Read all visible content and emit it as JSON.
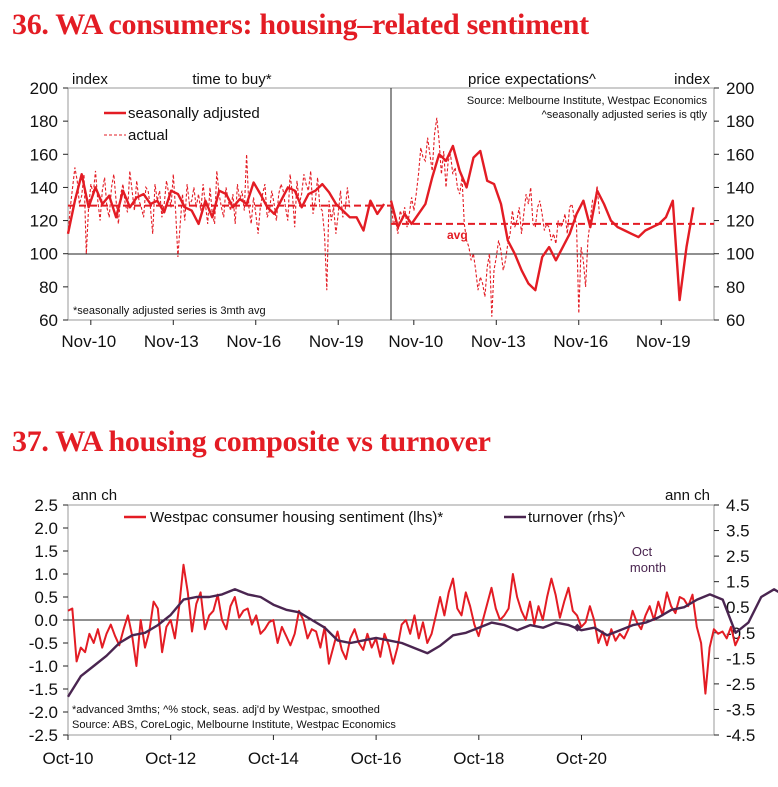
{
  "chart36": {
    "title": "36. WA consumers: housing–related sentiment",
    "ylabel_left": "index",
    "ylabel_right": "index",
    "y_ticks": [
      "200",
      "180",
      "160",
      "140",
      "120",
      "100",
      "80",
      "60"
    ],
    "x_ticks_left": [
      "Nov-10",
      "Nov-13",
      "Nov-16",
      "Nov-19"
    ],
    "x_ticks_right": [
      "Nov-10",
      "Nov-13",
      "Nov-16",
      "Nov-19"
    ],
    "panel_left_title": "time to buy*",
    "panel_right_title": "price expectations^",
    "legend_sa": "seasonally adjusted",
    "legend_actual": "actual",
    "source": "Source: Melbourne Institute, Westpac Economics",
    "note_right": "^seasonally adjusted series is qtly",
    "note_left": "*seasonally adjusted series is 3mth avg",
    "avg_label": "avg"
  },
  "chart37": {
    "title": "37. WA housing composite vs turnover",
    "ylabel_left": "ann ch",
    "ylabel_right": "ann ch",
    "y_ticks_left": [
      "2.5",
      "2.0",
      "1.5",
      "1.0",
      "0.5",
      "0.0",
      "-0.5",
      "-1.0",
      "-1.5",
      "-2.0",
      "-2.5"
    ],
    "y_ticks_right": [
      "4.5",
      "3.5",
      "2.5",
      "1.5",
      "0.5",
      "-0.5",
      "-1.5",
      "-2.5",
      "-3.5",
      "-4.5"
    ],
    "x_ticks": [
      "Oct-10",
      "Oct-12",
      "Oct-14",
      "Oct-16",
      "Oct-18",
      "Oct-20"
    ],
    "legend_sentiment": "Westpac consumer housing sentiment (lhs)*",
    "legend_turnover": "turnover (rhs)^",
    "annotation_line1": "Oct",
    "annotation_line2": "month",
    "note1": "*advanced 3mths; ^% stock, seas. adj'd by Westpac, smoothed",
    "note2": "Source: ABS, CoreLogic, Melbourne Institute, Westpac Economics"
  },
  "chart_data": [
    {
      "type": "line",
      "title": "36. WA consumers: housing–related sentiment — time to buy*",
      "xlabel": "",
      "ylabel": "index",
      "ylim": [
        60,
        200
      ],
      "x_range": [
        "2010-01",
        "2021-09"
      ],
      "series": [
        {
          "name": "seasonally adjusted",
          "style": "solid",
          "x_start": 2010.0,
          "step_years": 0.25,
          "values": [
            112,
            132,
            148,
            128,
            140,
            130,
            135,
            122,
            138,
            128,
            134,
            136,
            130,
            132,
            125,
            138,
            136,
            128,
            126,
            118,
            132,
            122,
            138,
            136,
            128,
            133,
            130,
            143,
            136,
            128,
            124,
            132,
            140,
            138,
            128,
            136,
            138,
            142,
            137,
            130,
            126,
            122,
            122,
            114,
            132,
            124,
            130
          ]
        },
        {
          "name": "actual",
          "style": "dashed",
          "x_start": 2010.0,
          "step_years": 0.0833,
          "values": [
            112,
            128,
            140,
            152,
            144,
            130,
            135,
            148,
            100,
            128,
            142,
            136,
            150,
            132,
            120,
            138,
            146,
            128,
            122,
            140,
            148,
            132,
            118,
            136,
            142,
            130,
            125,
            150,
            138,
            126,
            144,
            132,
            128,
            122,
            140,
            138,
            128,
            112,
            142,
            132,
            138,
            122,
            130,
            144,
            136,
            128,
            148,
            126,
            98,
            118,
            136,
            120,
            142,
            130,
            132,
            140,
            128,
            136,
            126,
            142,
            130,
            118,
            140,
            124,
            118,
            150,
            136,
            128,
            122,
            140,
            132,
            126,
            136,
            118,
            142,
            132,
            138,
            126,
            160,
            128,
            118,
            134,
            124,
            112,
            128,
            136,
            142,
            122,
            126,
            138,
            130,
            120,
            136,
            142,
            138,
            128,
            120,
            148,
            136,
            116,
            144,
            130,
            136,
            148,
            142,
            138,
            150,
            124,
            132,
            146,
            128,
            126,
            112,
            78,
            132,
            120,
            128,
            112,
            124,
            138,
            122,
            126,
            140,
            128
          ]
        },
        {
          "name": "avg",
          "style": "dashed",
          "value": 129
        }
      ]
    },
    {
      "type": "line",
      "title": "36. WA consumers: housing–related sentiment — price expectations^",
      "xlabel": "",
      "ylabel": "index",
      "ylim": [
        60,
        200
      ],
      "x_range": [
        "2010-01",
        "2021-09"
      ],
      "series": [
        {
          "name": "seasonally adjusted",
          "style": "solid",
          "x_start": 2010.0,
          "step_years": 0.25,
          "values": [
            132,
            116,
            124,
            118,
            124,
            130,
            146,
            160,
            156,
            165,
            150,
            140,
            158,
            162,
            144,
            142,
            130,
            108,
            100,
            90,
            82,
            78,
            98,
            104,
            96,
            104,
            112,
            124,
            132,
            116,
            138,
            130,
            120,
            116,
            114,
            112,
            110,
            114,
            116,
            118,
            122,
            132,
            72,
            104,
            128
          ]
        },
        {
          "name": "actual",
          "style": "dashed",
          "x_start": 2010.0,
          "step_years": 0.0833,
          "values": [
            132,
            118,
            120,
            112,
            126,
            122,
            128,
            116,
            124,
            134,
            126,
            136,
            148,
            164,
            158,
            156,
            170,
            160,
            150,
            172,
            182,
            168,
            148,
            162,
            140,
            156,
            160,
            148,
            152,
            140,
            136,
            146,
            118,
            108,
            104,
            96,
            100,
            90,
            78,
            86,
            82,
            74,
            92,
            100,
            62,
            90,
            98,
            108,
            102,
            90,
            96,
            106,
            112,
            126,
            116,
            120,
            128,
            112,
            124,
            136,
            130,
            140,
            118,
            116,
            128,
            132,
            124,
            114,
            118,
            116,
            108,
            112,
            106,
            120,
            116,
            118,
            124,
            112,
            128,
            130,
            122,
            118,
            64,
            104,
            96,
            80,
            108,
            120,
            132,
            130,
            141,
            124
          ]
        },
        {
          "name": "avg",
          "style": "dashed",
          "value": 118
        }
      ]
    },
    {
      "type": "line",
      "title": "37. WA housing composite vs turnover",
      "xlabel": "",
      "ylabel": "ann ch",
      "ylim": [
        -2.5,
        2.5
      ],
      "y2lim": [
        -4.5,
        4.5
      ],
      "x_range": [
        "2010-10",
        "2023-06"
      ],
      "series": [
        {
          "name": "Westpac consumer housing sentiment (lhs)*",
          "axis": "left",
          "x_start": 2010.83,
          "step_years": 0.0833,
          "values": [
            0.2,
            0.25,
            -0.9,
            -0.6,
            -0.7,
            -0.3,
            -0.5,
            -0.2,
            -0.6,
            -0.3,
            -0.1,
            -0.35,
            -0.55,
            -0.2,
            0.1,
            -0.35,
            -1.0,
            0.0,
            -0.6,
            -0.25,
            0.4,
            0.25,
            -0.7,
            -0.15,
            0.0,
            -0.4,
            0.3,
            1.2,
            0.6,
            -0.25,
            0.35,
            0.6,
            -0.2,
            0.1,
            0.2,
            0.55,
            0.0,
            -0.2,
            0.3,
            0.5,
            0.05,
            0.2,
            0.25,
            -0.1,
            0.1,
            -0.3,
            -0.2,
            -0.05,
            0.0,
            -0.5,
            -0.15,
            -0.35,
            -0.55,
            -0.3,
            0.2,
            0.0,
            -0.4,
            -0.2,
            -0.25,
            -0.6,
            -0.15,
            -0.95,
            -0.6,
            -0.25,
            -0.65,
            -0.85,
            -0.4,
            -0.2,
            -0.5,
            -0.65,
            -0.3,
            -0.6,
            -0.4,
            -0.8,
            -0.3,
            -0.55,
            -0.95,
            -0.6,
            -0.1,
            0.0,
            -0.3,
            0.1,
            -0.4,
            -0.05,
            -0.5,
            -0.3,
            0.1,
            0.5,
            0.1,
            0.6,
            0.9,
            0.25,
            0.1,
            0.6,
            0.3,
            -0.1,
            -0.35,
            0.0,
            0.35,
            0.7,
            0.25,
            0.0,
            0.1,
            0.25,
            1.0,
            0.5,
            0.2,
            0.0,
            0.4,
            -0.1,
            0.3,
            0.0,
            0.5,
            0.9,
            0.55,
            0.05,
            0.4,
            0.7,
            0.2,
            0.1,
            -0.15,
            -0.05,
            0.3,
            0.0,
            -0.5,
            -0.25,
            -0.55,
            -0.2,
            -0.45,
            -0.3,
            -0.4,
            -0.2,
            0.2,
            -0.05,
            -0.2,
            0.1,
            0.3,
            0.0,
            0.4,
            0.1,
            0.6,
            0.3,
            0.15,
            0.5,
            0.45,
            0.3,
            0.55,
            -0.15,
            -0.5,
            -1.6,
            -0.6,
            -0.2,
            -0.3,
            -0.25,
            -0.4,
            -0.15,
            -0.55,
            -0.35
          ]
        },
        {
          "name": "turnover (rhs)^",
          "axis": "right",
          "x_start": 2010.83,
          "step_years": 0.25,
          "values": [
            -3.0,
            -2.2,
            -1.8,
            -1.4,
            -0.9,
            -0.6,
            -0.5,
            -0.2,
            0.2,
            0.8,
            0.9,
            0.9,
            1.0,
            1.2,
            1.0,
            0.9,
            0.6,
            0.4,
            0.3,
            0.0,
            -0.3,
            -0.8,
            -0.9,
            -0.8,
            -0.7,
            -0.8,
            -0.9,
            -1.1,
            -1.3,
            -1.0,
            -0.6,
            -0.5,
            -0.3,
            -0.1,
            -0.2,
            -0.4,
            -0.2,
            -0.3,
            -0.1,
            -0.2,
            -0.4,
            -0.3,
            -0.6,
            -0.4,
            -0.2,
            -0.1,
            0.1,
            0.4,
            0.5,
            0.8,
            1.0,
            0.8,
            -0.5,
            -0.1,
            0.9,
            1.2,
            0.9,
            0.6
          ]
        },
        {
          "name": "Oct month",
          "axis": "right",
          "type": "marker",
          "x": 2020.75,
          "value": -0.3
        }
      ]
    }
  ]
}
